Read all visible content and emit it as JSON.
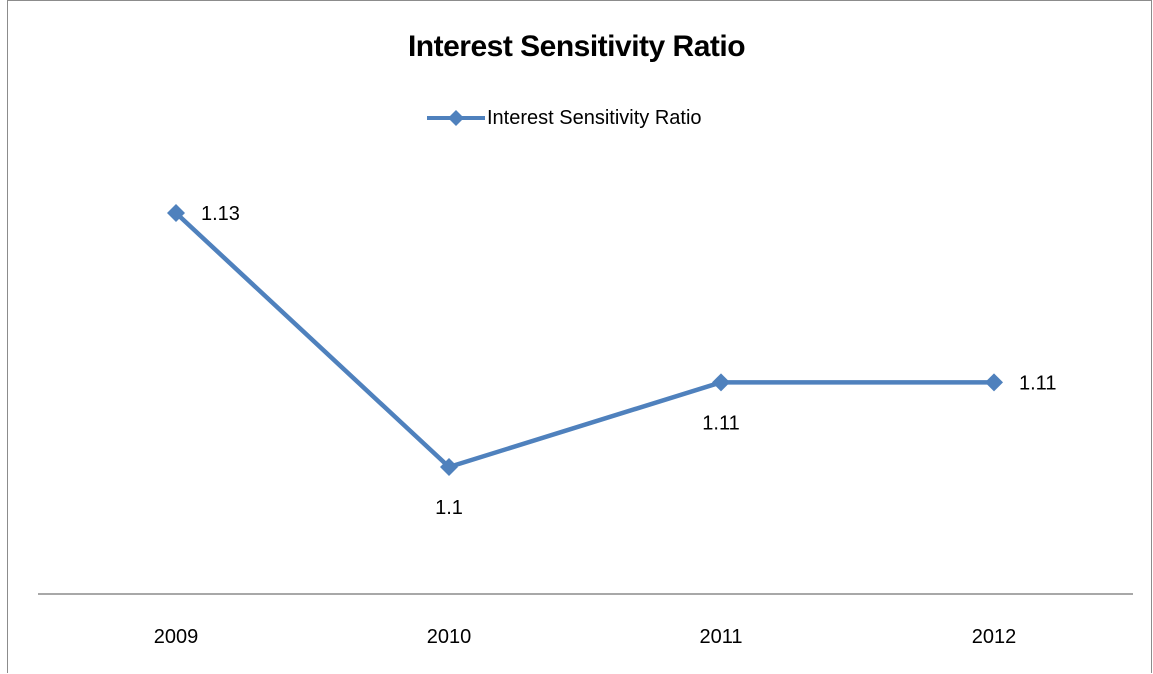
{
  "chart_data": {
    "type": "line",
    "title": "Interest Sensitivity Ratio",
    "categories": [
      "2009",
      "2010",
      "2011",
      "2012"
    ],
    "series": [
      {
        "name": "Interest Sensitivity Ratio",
        "values": [
          1.13,
          1.1,
          1.11,
          1.11
        ],
        "data_labels": [
          "1.13",
          "1.1",
          "1.11",
          "1.11"
        ],
        "color": "#4f81bd"
      }
    ],
    "xlabel": "",
    "ylabel": "",
    "grid": false,
    "legend_position": "top"
  },
  "colors": {
    "series": "#4f81bd",
    "axis": "#8c8c8c"
  }
}
